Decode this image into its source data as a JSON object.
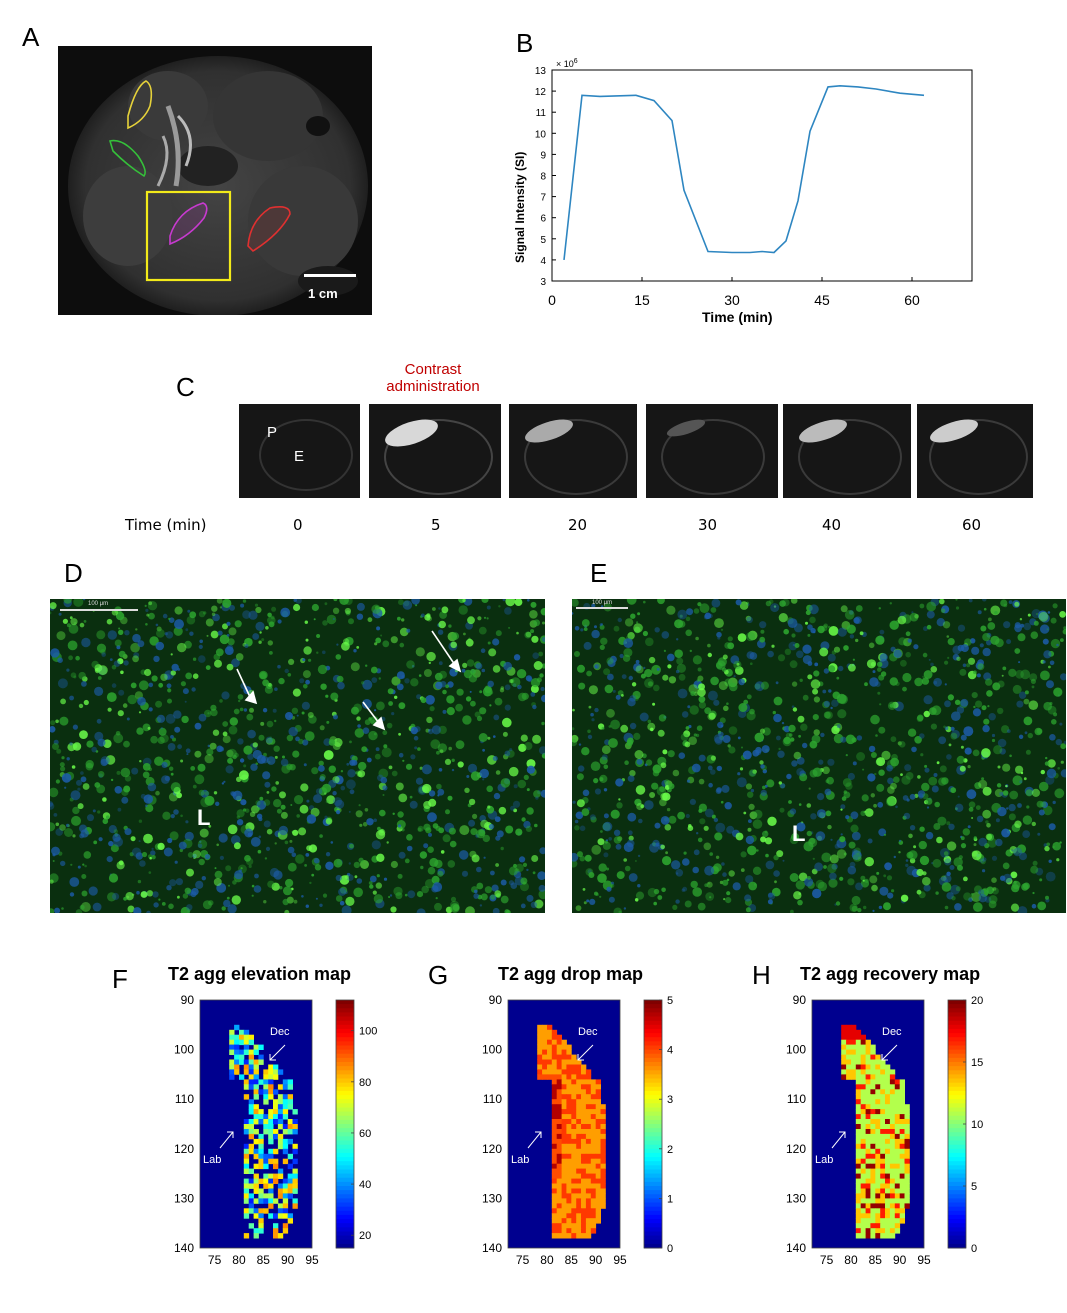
{
  "panels": {
    "a": "A",
    "b": "B",
    "c": "C",
    "d": "D",
    "e": "E",
    "f": "F",
    "g": "G",
    "h": "H"
  },
  "panel_a": {
    "scale_bar_label": "1 cm",
    "roi_colors": [
      "#e6d23a",
      "#35c03a",
      "#c83ad0",
      "#e03030",
      "#f2ea1a"
    ]
  },
  "chart_data": [
    {
      "type": "line",
      "title": "",
      "xlabel": "Time (min)",
      "ylabel": "Signal Intensity (SI)",
      "y_multiplier": "× 10",
      "y_multiplier_exp": "6",
      "xlim": [
        0,
        70
      ],
      "ylim": [
        3,
        13
      ],
      "x_ticks": [
        "0",
        "15",
        "30",
        "45",
        "60"
      ],
      "y_ticks": [
        "3",
        "4",
        "5",
        "6",
        "7",
        "8",
        "9",
        "10",
        "11",
        "12",
        "13"
      ],
      "series": [
        {
          "name": "SI",
          "color": "#2e86c1",
          "x": [
            2,
            5,
            8,
            14,
            17,
            20,
            22,
            26,
            30,
            33,
            35,
            37,
            39,
            41,
            43,
            46,
            48,
            51,
            54,
            58,
            62
          ],
          "y": [
            4.0,
            11.8,
            11.75,
            11.8,
            11.55,
            10.6,
            7.3,
            4.4,
            4.35,
            4.35,
            4.4,
            4.35,
            4.9,
            6.8,
            10.1,
            12.2,
            12.25,
            12.2,
            12.1,
            11.9,
            11.8
          ]
        }
      ]
    }
  ],
  "panel_c": {
    "contrast_label_line1": "Contrast",
    "contrast_label_line2": "administration",
    "contrast_color": "#c00000",
    "p_label": "P",
    "e_label": "E",
    "time_label": "Time (min)",
    "times": [
      "0",
      "5",
      "20",
      "30",
      "40",
      "60"
    ]
  },
  "panel_d": {
    "scale_label": "100 μm",
    "l_label": "L"
  },
  "panel_e": {
    "scale_label": "100 μm",
    "l_label": "L"
  },
  "heatmaps": [
    {
      "title": "T2 agg elevation map",
      "colorbar_ticks": [
        "20",
        "40",
        "60",
        "80",
        "100"
      ],
      "dec_label": "Dec",
      "lab_label": "Lab",
      "x_ticks": [
        "75",
        "80",
        "85",
        "90",
        "95"
      ],
      "y_ticks": [
        "90",
        "100",
        "110",
        "120",
        "130",
        "140"
      ]
    },
    {
      "title": "T2 agg drop map",
      "colorbar_ticks": [
        "0",
        "1",
        "2",
        "3",
        "4",
        "5"
      ],
      "dec_label": "Dec",
      "lab_label": "Lab",
      "x_ticks": [
        "75",
        "80",
        "85",
        "90",
        "95"
      ],
      "y_ticks": [
        "90",
        "100",
        "110",
        "120",
        "130",
        "140"
      ]
    },
    {
      "title": "T2 agg recovery map",
      "colorbar_ticks": [
        "0",
        "5",
        "10",
        "15",
        "20"
      ],
      "dec_label": "Dec",
      "lab_label": "Lab",
      "x_ticks": [
        "75",
        "80",
        "85",
        "90",
        "95"
      ],
      "y_ticks": [
        "90",
        "100",
        "110",
        "120",
        "130",
        "140"
      ]
    }
  ]
}
